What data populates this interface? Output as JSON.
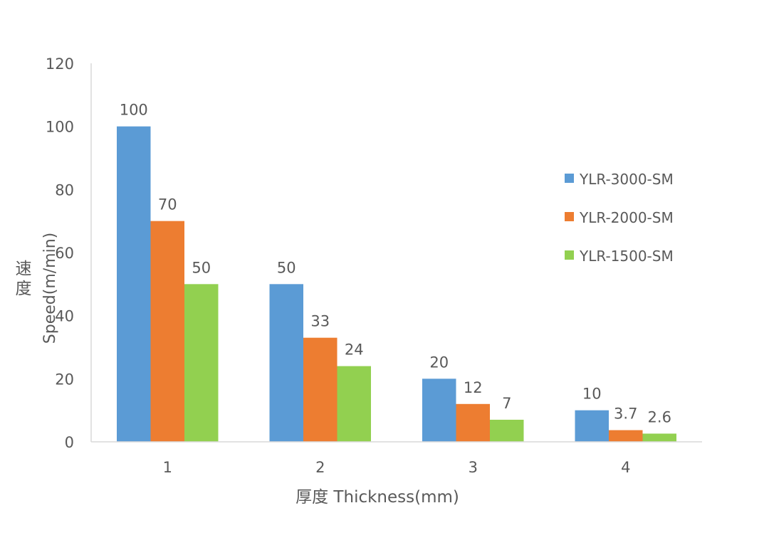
{
  "chart_data": {
    "type": "bar",
    "title": "",
    "xlabel": "厚度 Thickness(mm)",
    "ylabel_cn": "速度",
    "ylabel": "Speed(m/min)",
    "categories": [
      "1",
      "2",
      "3",
      "4"
    ],
    "ylim": [
      0,
      120
    ],
    "yticks": [
      0,
      20,
      40,
      60,
      80,
      100,
      120
    ],
    "grid": false,
    "legend_position": "right",
    "series": [
      {
        "name": "YLR-3000-SM",
        "color": "#5B9BD5",
        "values": [
          100,
          50,
          20,
          10
        ],
        "labels": [
          "100",
          "50",
          "20",
          "10"
        ]
      },
      {
        "name": "YLR-2000-SM",
        "color": "#ED7D31",
        "values": [
          70,
          33,
          12,
          3.7
        ],
        "labels": [
          "70",
          "33",
          "12",
          "3.7"
        ]
      },
      {
        "name": "YLR-1500-SM",
        "color": "#92D050",
        "values": [
          50,
          24,
          7,
          2.6
        ],
        "labels": [
          "50",
          "24",
          "7",
          "2.6"
        ]
      }
    ]
  }
}
